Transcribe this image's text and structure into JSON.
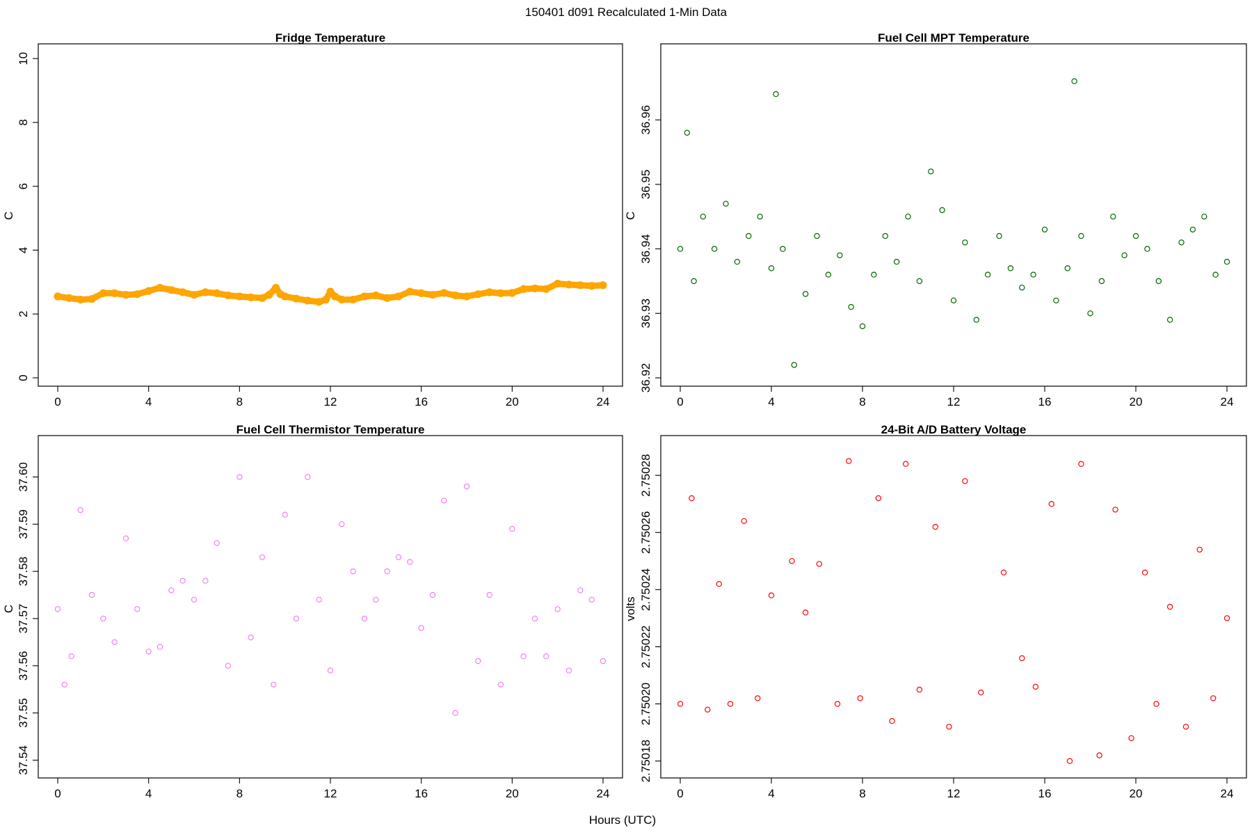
{
  "figure": {
    "main_title": "150401    d091    Recalculated 1-Min Data",
    "shared_xlabel": "Hours (UTC)"
  },
  "chart_data": [
    {
      "id": "fridge",
      "type": "scatter",
      "title": "Fridge Temperature",
      "xlabel": "",
      "ylabel": "C",
      "color": "#ffa500",
      "xlim": [
        0,
        24
      ],
      "ylim": [
        0,
        10.2
      ],
      "xticks": [
        0,
        4,
        8,
        12,
        16,
        20,
        24
      ],
      "yticks": [
        0,
        2,
        4,
        6,
        8,
        10
      ],
      "ytick_labels": [
        "0",
        "2",
        "4",
        "6",
        "8",
        "10"
      ],
      "marker": "filled",
      "x": [
        0,
        0.5,
        1,
        1.5,
        2,
        2.5,
        3,
        3.5,
        4,
        4.5,
        5,
        5.5,
        6,
        6.5,
        7,
        7.5,
        8,
        8.5,
        9,
        9.3,
        9.6,
        9.8,
        10,
        10.5,
        11,
        11.5,
        11.8,
        12,
        12.2,
        12.5,
        13,
        13.5,
        14,
        14.5,
        15,
        15.5,
        16,
        16.5,
        17,
        17.5,
        18,
        18.5,
        19,
        19.5,
        20,
        20.5,
        21,
        21.5,
        22,
        22.5,
        23,
        23.5,
        24
      ],
      "values": [
        2.55,
        2.5,
        2.45,
        2.47,
        2.65,
        2.65,
        2.6,
        2.62,
        2.72,
        2.82,
        2.75,
        2.68,
        2.6,
        2.68,
        2.65,
        2.58,
        2.55,
        2.52,
        2.5,
        2.6,
        2.82,
        2.62,
        2.55,
        2.48,
        2.42,
        2.38,
        2.45,
        2.7,
        2.55,
        2.45,
        2.45,
        2.55,
        2.58,
        2.5,
        2.55,
        2.7,
        2.65,
        2.6,
        2.66,
        2.58,
        2.55,
        2.62,
        2.68,
        2.65,
        2.66,
        2.78,
        2.8,
        2.78,
        2.95,
        2.92,
        2.9,
        2.88,
        2.9
      ]
    },
    {
      "id": "mpt",
      "type": "scatter",
      "title": "Fuel Cell MPT Temperature",
      "xlabel": "",
      "ylabel": "C",
      "color": "#006400",
      "xlim": [
        0,
        24
      ],
      "ylim": [
        36.92,
        36.9705
      ],
      "xticks": [
        0,
        4,
        8,
        12,
        16,
        20,
        24
      ],
      "yticks": [
        36.92,
        36.93,
        36.94,
        36.95,
        36.96
      ],
      "ytick_labels": [
        "36.92",
        "36.93",
        "36.94",
        "36.95",
        "36.96"
      ],
      "marker": "open",
      "x": [
        0,
        0.3,
        0.6,
        1,
        1.5,
        2,
        2.5,
        3,
        3.5,
        4,
        4.2,
        4.5,
        5,
        5.5,
        6,
        6.5,
        7,
        7.5,
        8,
        8.5,
        9,
        9.5,
        10,
        10.5,
        11,
        11.5,
        12,
        12.5,
        13,
        13.5,
        14,
        14.5,
        15,
        15.5,
        16,
        16.5,
        17,
        17.3,
        17.6,
        18,
        18.5,
        19,
        19.5,
        20,
        20.5,
        21,
        21.5,
        22,
        22.5,
        23,
        23.5,
        24
      ],
      "values": [
        36.94,
        36.958,
        36.935,
        36.945,
        36.94,
        36.947,
        36.938,
        36.942,
        36.945,
        36.937,
        36.964,
        36.94,
        36.922,
        36.933,
        36.942,
        36.936,
        36.939,
        36.931,
        36.928,
        36.936,
        36.942,
        36.938,
        36.945,
        36.935,
        36.952,
        36.946,
        36.932,
        36.941,
        36.929,
        36.936,
        36.942,
        36.937,
        36.934,
        36.936,
        36.943,
        36.932,
        36.937,
        36.966,
        36.942,
        36.93,
        36.935,
        36.945,
        36.939,
        36.942,
        36.94,
        36.935,
        36.929,
        36.941,
        36.943,
        36.945,
        36.936,
        36.938
      ]
    },
    {
      "id": "thermistor",
      "type": "scatter",
      "title": "Fuel Cell Thermistor Temperature",
      "xlabel": "",
      "ylabel": "C",
      "color": "#ee82ee",
      "xlim": [
        0,
        24
      ],
      "ylim": [
        37.538,
        37.607
      ],
      "xticks": [
        0,
        4,
        8,
        12,
        16,
        20,
        24
      ],
      "yticks": [
        37.54,
        37.55,
        37.56,
        37.57,
        37.58,
        37.59,
        37.6
      ],
      "ytick_labels": [
        "37.54",
        "37.55",
        "37.56",
        "37.57",
        "37.58",
        "37.59",
        "37.60"
      ],
      "marker": "open",
      "x": [
        0,
        0.3,
        0.6,
        1,
        1.5,
        2,
        2.5,
        3,
        3.5,
        4,
        4.5,
        5,
        5.5,
        6,
        6.5,
        7,
        7.5,
        8,
        8.5,
        9,
        9.5,
        10,
        10.5,
        11,
        11.5,
        12,
        12.5,
        13,
        13.5,
        14,
        14.5,
        15,
        15.5,
        16,
        16.5,
        17,
        17.5,
        18,
        18.5,
        19,
        19.5,
        20,
        20.5,
        21,
        21.5,
        22,
        22.5,
        23,
        23.5,
        24
      ],
      "values": [
        37.572,
        37.556,
        37.562,
        37.593,
        37.575,
        37.57,
        37.565,
        37.587,
        37.572,
        37.563,
        37.564,
        37.576,
        37.578,
        37.574,
        37.578,
        37.586,
        37.56,
        37.6,
        37.566,
        37.583,
        37.556,
        37.592,
        37.57,
        37.6,
        37.574,
        37.559,
        37.59,
        37.58,
        37.57,
        37.574,
        37.58,
        37.583,
        37.582,
        37.568,
        37.575,
        37.595,
        37.55,
        37.598,
        37.561,
        37.575,
        37.556,
        37.589,
        37.562,
        37.57,
        37.562,
        37.572,
        37.559,
        37.576,
        37.574,
        37.561
      ]
    },
    {
      "id": "battery",
      "type": "scatter",
      "title": "24-Bit A/D Battery Voltage",
      "xlabel": "",
      "ylabel": "volts",
      "color": "#ff0000",
      "xlim": [
        0,
        24
      ],
      "ylim": [
        2.750177,
        2.750291
      ],
      "xticks": [
        0,
        4,
        8,
        12,
        16,
        20,
        24
      ],
      "yticks": [
        2.75018,
        2.7502,
        2.75022,
        2.75024,
        2.75026,
        2.75028
      ],
      "ytick_labels": [
        "2.75018",
        "2.75020",
        "2.75022",
        "2.75024",
        "2.75026",
        "2.75028"
      ],
      "marker": "open",
      "x": [
        0,
        0.5,
        1.2,
        1.7,
        2.2,
        2.8,
        3.4,
        4.0,
        4.9,
        5.5,
        6.1,
        6.9,
        7.4,
        7.9,
        8.7,
        9.3,
        9.9,
        10.5,
        11.2,
        11.8,
        12.5,
        13.2,
        14.2,
        15.0,
        15.6,
        16.3,
        17.1,
        17.6,
        18.4,
        19.1,
        19.8,
        20.4,
        20.9,
        21.5,
        22.2,
        22.8,
        23.4,
        24.0
      ],
      "values": [
        2.7502,
        2.750272,
        2.750198,
        2.750242,
        2.7502,
        2.750264,
        2.750202,
        2.750238,
        2.75025,
        2.750232,
        2.750249,
        2.7502,
        2.750285,
        2.750202,
        2.750272,
        2.750194,
        2.750284,
        2.750205,
        2.750262,
        2.750192,
        2.750278,
        2.750204,
        2.750246,
        2.750216,
        2.750206,
        2.75027,
        2.75018,
        2.750284,
        2.750182,
        2.750268,
        2.750188,
        2.750246,
        2.7502,
        2.750234,
        2.750192,
        2.750254,
        2.750202,
        2.75023
      ]
    }
  ]
}
